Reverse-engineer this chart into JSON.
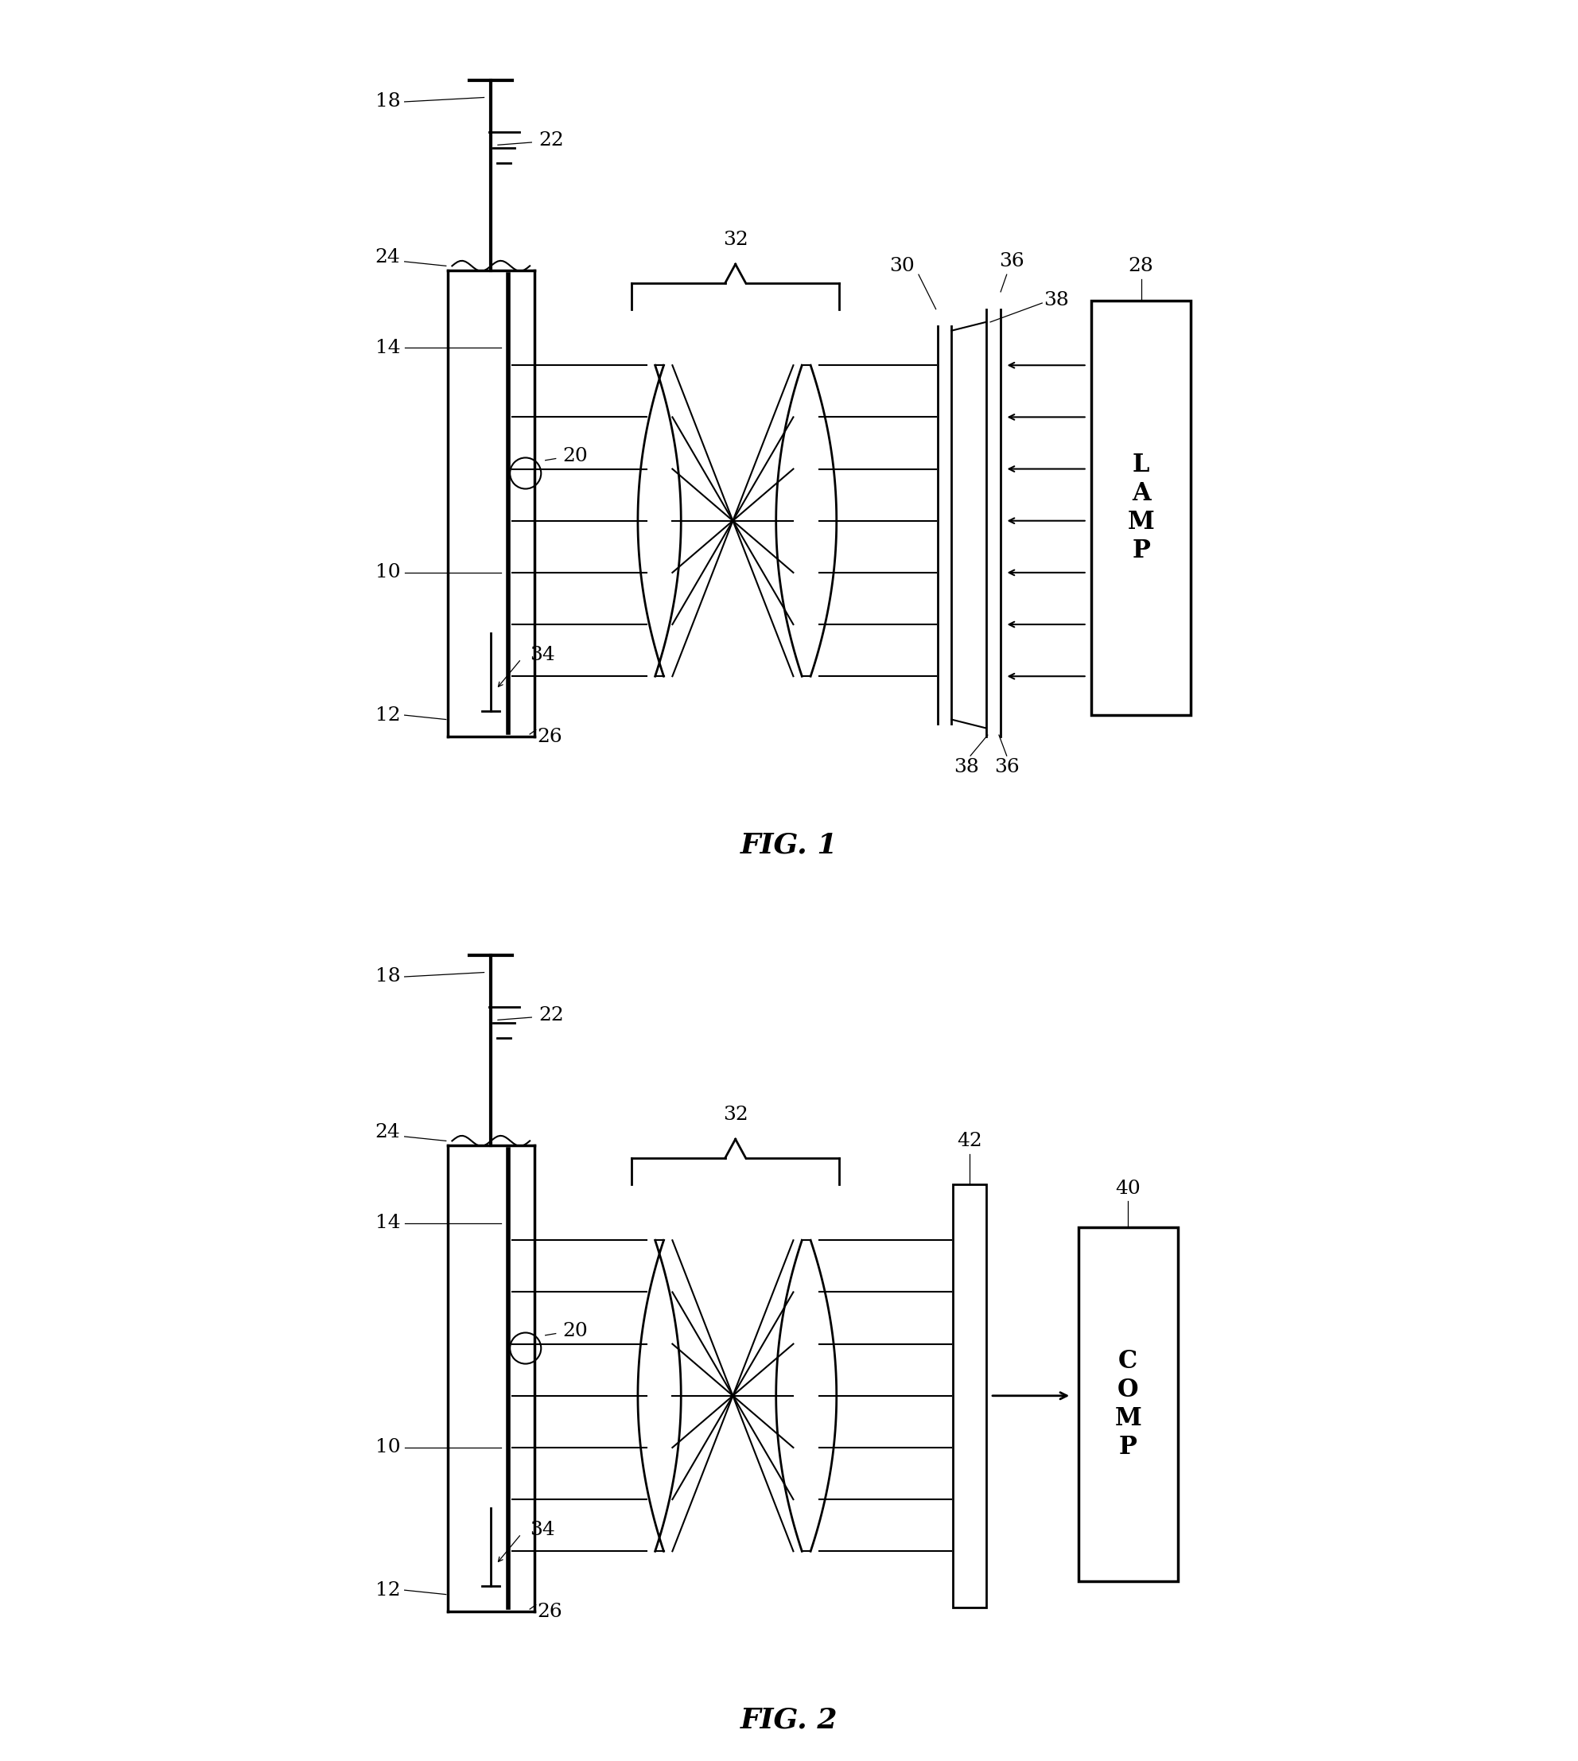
{
  "fig1_caption": "FIG. 1",
  "fig2_caption": "FIG. 2",
  "lamp_label": "L\nA\nM\nP",
  "comp_label": "C\nO\nM\nP",
  "background_color": "#ffffff",
  "line_color": "#000000",
  "lw": 2.0,
  "thin_lw": 1.5
}
